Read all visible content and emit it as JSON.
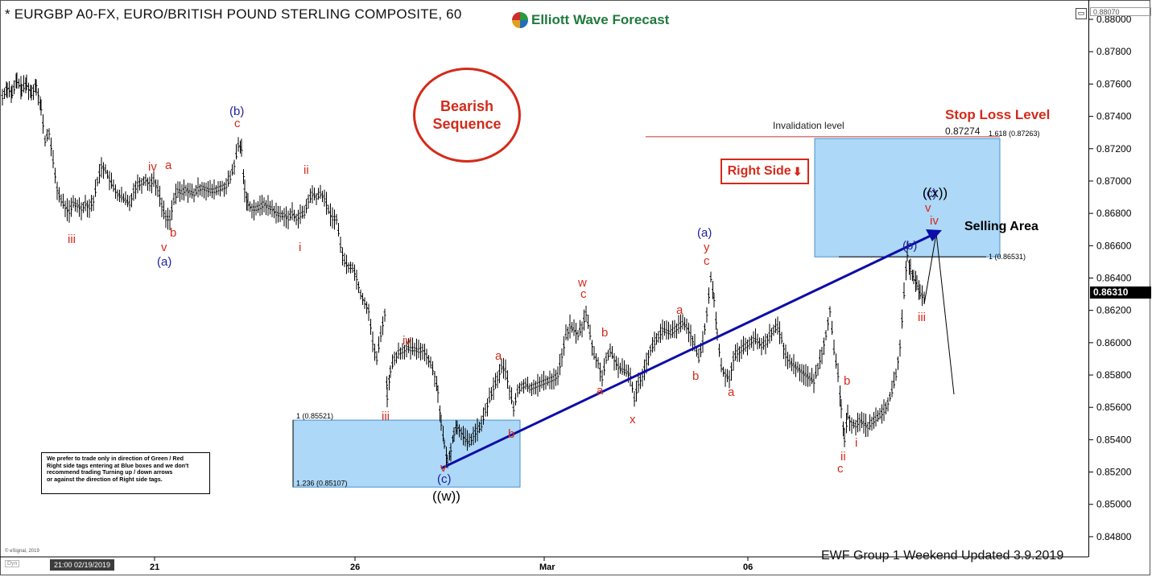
{
  "title": "* EURGBP A0-FX, EURO/BRITISH POUND STERLING COMPOSITE, 60",
  "brand": "Elliott Wave Forecast",
  "badge": {
    "line1": "Bearish",
    "line2": "Sequence"
  },
  "right_side_tag": "Right Side",
  "note_lines": [
    "We prefer to trade only in direction of Green / Red",
    "Right side tags entering at Blue boxes and we don't",
    "recommend trading Turning up / down arrows",
    "or against the direction of Right side tags."
  ],
  "footer": "EWF Group 1  Weekend  Updated 3.9.2019",
  "copyright": "© eSignal, 2019",
  "cursor_date": "21:00 02/19/2019",
  "dyn_label": "Dyn",
  "current_price": "0.86310",
  "top_price": "0.88070",
  "colors": {
    "red": "#d42a1a",
    "blue": "#1e1e9e",
    "box": "#add8f7",
    "arrow": "#0d0da8"
  },
  "chart_data": {
    "type": "line",
    "subtype": "ohlc-hourly",
    "y_ticks": [
      "0.88000",
      "0.87800",
      "0.87600",
      "0.87400",
      "0.87200",
      "0.87000",
      "0.86800",
      "0.86600",
      "0.86400",
      "0.86200",
      "0.86000",
      "0.85800",
      "0.85600",
      "0.85400",
      "0.85200",
      "0.85000",
      "0.84800"
    ],
    "ylim": [
      0.8472,
      0.8807
    ],
    "x_ticks": [
      "21",
      "26",
      "Mar",
      "06"
    ],
    "series": [
      {
        "values": [
          [
            0,
            0.8752
          ],
          [
            6,
            0.8758
          ],
          [
            12,
            0.8754
          ],
          [
            18,
            0.8762
          ],
          [
            24,
            0.8757
          ],
          [
            30,
            0.876
          ],
          [
            36,
            0.8754
          ],
          [
            42,
            0.876
          ],
          [
            48,
            0.8745
          ],
          [
            53,
            0.8725
          ],
          [
            58,
            0.873
          ],
          [
            63,
            0.8712
          ],
          [
            68,
            0.8695
          ],
          [
            73,
            0.8688
          ],
          [
            78,
            0.8684
          ],
          [
            83,
            0.8681
          ],
          [
            88,
            0.8686
          ],
          [
            93,
            0.8685
          ],
          [
            98,
            0.8683
          ],
          [
            103,
            0.8686
          ],
          [
            108,
            0.8684
          ],
          [
            113,
            0.8688
          ],
          [
            118,
            0.87
          ],
          [
            123,
            0.8709
          ],
          [
            128,
            0.8707
          ],
          [
            133,
            0.8701
          ],
          [
            138,
            0.8696
          ],
          [
            143,
            0.8692
          ],
          [
            148,
            0.869
          ],
          [
            153,
            0.8688
          ],
          [
            158,
            0.8686
          ],
          [
            163,
            0.8694
          ],
          [
            168,
            0.8698
          ],
          [
            173,
            0.8699
          ],
          [
            178,
            0.8701
          ],
          [
            183,
            0.8698
          ],
          [
            188,
            0.8701
          ],
          [
            193,
            0.8695
          ],
          [
            198,
            0.8685
          ],
          [
            203,
            0.8677
          ],
          [
            208,
            0.8677
          ],
          [
            213,
            0.8688
          ],
          [
            218,
            0.8694
          ],
          [
            223,
            0.8693
          ],
          [
            228,
            0.8695
          ],
          [
            233,
            0.8693
          ],
          [
            238,
            0.8692
          ],
          [
            243,
            0.8695
          ],
          [
            248,
            0.8696
          ],
          [
            253,
            0.8695
          ],
          [
            258,
            0.8694
          ],
          [
            263,
            0.8694
          ],
          [
            268,
            0.8695
          ],
          [
            273,
            0.8696
          ],
          [
            278,
            0.8697
          ],
          [
            283,
            0.8702
          ],
          [
            288,
            0.871
          ],
          [
            293,
            0.8722
          ],
          [
            297,
            0.872
          ],
          [
            301,
            0.8694
          ],
          [
            305,
            0.8686
          ],
          [
            310,
            0.8683
          ],
          [
            315,
            0.8683
          ],
          [
            320,
            0.8684
          ],
          [
            325,
            0.8686
          ],
          [
            330,
            0.8684
          ],
          [
            335,
            0.8683
          ],
          [
            340,
            0.868
          ],
          [
            345,
            0.8679
          ],
          [
            350,
            0.8679
          ],
          [
            355,
            0.8677
          ],
          [
            360,
            0.868
          ],
          [
            365,
            0.8677
          ],
          [
            370,
            0.8679
          ],
          [
            375,
            0.868
          ],
          [
            380,
            0.8688
          ],
          [
            385,
            0.8692
          ],
          [
            390,
            0.869
          ],
          [
            395,
            0.8692
          ],
          [
            400,
            0.869
          ],
          [
            405,
            0.8682
          ],
          [
            410,
            0.8677
          ],
          [
            415,
            0.8677
          ],
          [
            420,
            0.866
          ],
          [
            425,
            0.865
          ],
          [
            430,
            0.8647
          ],
          [
            435,
            0.8647
          ],
          [
            440,
            0.864
          ],
          [
            445,
            0.863
          ],
          [
            450,
            0.8625
          ],
          [
            455,
            0.862
          ],
          [
            460,
            0.86
          ],
          [
            465,
            0.859
          ],
          [
            470,
            0.8605
          ],
          [
            475,
            0.8618
          ],
          [
            478,
            0.8566
          ],
          [
            482,
            0.8583
          ],
          [
            487,
            0.859
          ],
          [
            492,
            0.8594
          ],
          [
            497,
            0.8595
          ],
          [
            502,
            0.8597
          ],
          [
            507,
            0.8596
          ],
          [
            512,
            0.8596
          ],
          [
            517,
            0.8595
          ],
          [
            522,
            0.8596
          ],
          [
            527,
            0.8592
          ],
          [
            532,
            0.8587
          ],
          [
            537,
            0.858
          ],
          [
            541,
            0.857
          ],
          [
            545,
            0.855
          ],
          [
            549,
            0.8537
          ],
          [
            553,
            0.8525
          ],
          [
            557,
            0.8534
          ],
          [
            561,
            0.8544
          ],
          [
            565,
            0.8548
          ],
          [
            570,
            0.8545
          ],
          [
            575,
            0.854
          ],
          [
            580,
            0.8538
          ],
          [
            585,
            0.8543
          ],
          [
            590,
            0.8546
          ],
          [
            595,
            0.8549
          ],
          [
            600,
            0.8558
          ],
          [
            605,
            0.8565
          ],
          [
            610,
            0.8572
          ],
          [
            615,
            0.8578
          ],
          [
            620,
            0.8585
          ],
          [
            625,
            0.8583
          ],
          [
            630,
            0.8571
          ],
          [
            635,
            0.8559
          ],
          [
            640,
            0.857
          ],
          [
            645,
            0.8573
          ],
          [
            650,
            0.8574
          ],
          [
            655,
            0.8572
          ],
          [
            660,
            0.8573
          ],
          [
            665,
            0.8574
          ],
          [
            670,
            0.8575
          ],
          [
            675,
            0.8576
          ],
          [
            680,
            0.8577
          ],
          [
            685,
            0.8578
          ],
          [
            690,
            0.858
          ],
          [
            695,
            0.8592
          ],
          [
            700,
            0.8604
          ],
          [
            705,
            0.861
          ],
          [
            710,
            0.8608
          ],
          [
            715,
            0.8605
          ],
          [
            720,
            0.861
          ],
          [
            725,
            0.8618
          ],
          [
            730,
            0.8605
          ],
          [
            735,
            0.8592
          ],
          [
            740,
            0.8588
          ],
          [
            745,
            0.8578
          ],
          [
            750,
            0.859
          ],
          [
            755,
            0.8595
          ],
          [
            760,
            0.859
          ],
          [
            765,
            0.8585
          ],
          [
            770,
            0.8583
          ],
          [
            775,
            0.8582
          ],
          [
            780,
            0.858
          ],
          [
            785,
            0.8565
          ],
          [
            790,
            0.8575
          ],
          [
            795,
            0.858
          ],
          [
            800,
            0.8588
          ],
          [
            805,
            0.8596
          ],
          [
            810,
            0.86
          ],
          [
            815,
            0.8604
          ],
          [
            820,
            0.8608
          ],
          [
            825,
            0.8607
          ],
          [
            830,
            0.8606
          ],
          [
            835,
            0.8608
          ],
          [
            840,
            0.861
          ],
          [
            845,
            0.8612
          ],
          [
            850,
            0.861
          ],
          [
            855,
            0.8605
          ],
          [
            860,
            0.8598
          ],
          [
            865,
            0.859
          ],
          [
            870,
            0.86
          ],
          [
            875,
            0.8618
          ],
          [
            880,
            0.864
          ],
          [
            884,
            0.8627
          ],
          [
            888,
            0.8605
          ],
          [
            893,
            0.8585
          ],
          [
            898,
            0.858
          ],
          [
            903,
            0.8578
          ],
          [
            908,
            0.859
          ],
          [
            913,
            0.8594
          ],
          [
            918,
            0.8596
          ],
          [
            923,
            0.8598
          ],
          [
            928,
            0.86
          ],
          [
            933,
            0.8602
          ],
          [
            938,
            0.8601
          ],
          [
            943,
            0.8598
          ],
          [
            948,
            0.86
          ],
          [
            953,
            0.8605
          ],
          [
            958,
            0.8608
          ],
          [
            963,
            0.861
          ],
          [
            968,
            0.8602
          ],
          [
            973,
            0.8592
          ],
          [
            978,
            0.8588
          ],
          [
            983,
            0.8586
          ],
          [
            988,
            0.8584
          ],
          [
            993,
            0.8582
          ],
          [
            998,
            0.858
          ],
          [
            1003,
            0.8578
          ],
          [
            1008,
            0.8576
          ],
          [
            1013,
            0.8585
          ],
          [
            1018,
            0.8594
          ],
          [
            1023,
            0.8605
          ],
          [
            1028,
            0.862
          ],
          [
            1033,
            0.8595
          ],
          [
            1038,
            0.858
          ],
          [
            1042,
            0.856
          ],
          [
            1046,
            0.854
          ],
          [
            1050,
            0.8555
          ],
          [
            1055,
            0.855
          ],
          [
            1060,
            0.8549
          ],
          [
            1065,
            0.8552
          ],
          [
            1070,
            0.855
          ],
          [
            1075,
            0.8548
          ],
          [
            1080,
            0.8551
          ],
          [
            1085,
            0.8553
          ],
          [
            1090,
            0.8555
          ],
          [
            1095,
            0.8558
          ],
          [
            1100,
            0.8563
          ],
          [
            1105,
            0.857
          ],
          [
            1110,
            0.858
          ],
          [
            1115,
            0.8598
          ],
          [
            1120,
            0.863
          ],
          [
            1124,
            0.8655
          ],
          [
            1128,
            0.8645
          ],
          [
            1132,
            0.864
          ],
          [
            1136,
            0.8636
          ],
          [
            1140,
            0.863
          ],
          [
            1146,
            0.8628
          ]
        ]
      }
    ],
    "boxes": [
      {
        "name": "support-box",
        "y_top": 0.85521,
        "y_bottom": 0.85107,
        "label_top": "1 (0.85521)",
        "label_bottom": "1.236 (0.85107)"
      },
      {
        "name": "selling-box",
        "y_top": 0.87263,
        "y_bottom": 0.86531,
        "label_top": "1.618 (0.87263)",
        "label_bottom": "1 (0.86531)"
      }
    ],
    "invalidation": {
      "label": "Invalidation level",
      "value_label": "0.87274",
      "y": 0.87274,
      "stop_label": "Stop Loss Level"
    },
    "selling_area_label": "Selling Area",
    "wave_labels": [
      {
        "text": "(b)",
        "color": "blue"
      },
      {
        "text": "c",
        "color": "red"
      },
      {
        "text": "iv",
        "color": "red"
      },
      {
        "text": "a",
        "color": "red"
      },
      {
        "text": "iii",
        "color": "red"
      },
      {
        "text": "b",
        "color": "red"
      },
      {
        "text": "v",
        "color": "red"
      },
      {
        "text": "(a)",
        "color": "blue"
      },
      {
        "text": "ii",
        "color": "red"
      },
      {
        "text": "i",
        "color": "red"
      },
      {
        "text": "iv",
        "color": "red"
      },
      {
        "text": "iii",
        "color": "red"
      },
      {
        "text": "a",
        "color": "red"
      },
      {
        "text": "b",
        "color": "red"
      },
      {
        "text": "v",
        "color": "red"
      },
      {
        "text": "(c)",
        "color": "blue"
      },
      {
        "text": "((w))",
        "color": "black"
      },
      {
        "text": "w",
        "color": "red"
      },
      {
        "text": "c",
        "color": "red"
      },
      {
        "text": "b",
        "color": "red"
      },
      {
        "text": "a",
        "color": "red"
      },
      {
        "text": "x",
        "color": "red"
      },
      {
        "text": "a",
        "color": "red"
      },
      {
        "text": "b",
        "color": "red"
      },
      {
        "text": "(a)",
        "color": "blue"
      },
      {
        "text": "y",
        "color": "red"
      },
      {
        "text": "c",
        "color": "red"
      },
      {
        "text": "a",
        "color": "red"
      },
      {
        "text": "b",
        "color": "red"
      },
      {
        "text": "i",
        "color": "red"
      },
      {
        "text": "ii",
        "color": "red"
      },
      {
        "text": "c",
        "color": "red"
      },
      {
        "text": "(b)",
        "color": "blue"
      },
      {
        "text": "iii",
        "color": "red"
      },
      {
        "text": "iv",
        "color": "red"
      },
      {
        "text": "v",
        "color": "red"
      },
      {
        "text": "(c)",
        "color": "blue"
      },
      {
        "text": "((x))",
        "color": "black"
      }
    ]
  }
}
